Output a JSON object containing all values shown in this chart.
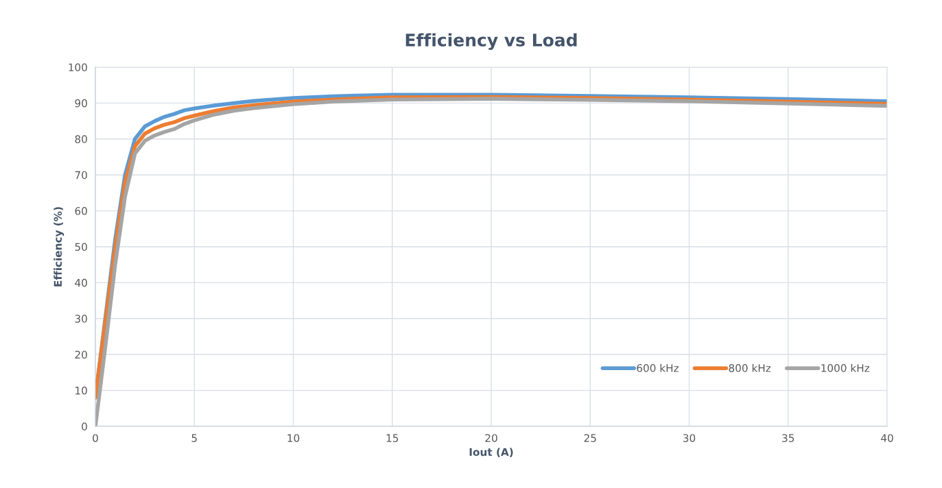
{
  "chart_data": {
    "type": "line",
    "title": "Efficiency vs Load",
    "xlabel": "Iout (A)",
    "ylabel": "Efficiency (%)",
    "x": [
      0,
      0.5,
      1,
      1.5,
      2,
      2.5,
      3,
      3.5,
      4,
      4.5,
      5,
      6,
      7,
      8,
      10,
      12,
      15,
      20,
      25,
      30,
      35,
      40
    ],
    "series": [
      {
        "name": "600 kHz",
        "color": "#5b9bd5",
        "values": [
          8,
          30,
          52,
          70,
          80,
          83.5,
          85,
          86.2,
          87,
          88,
          88.5,
          89.3,
          90,
          90.6,
          91.4,
          91.9,
          92.3,
          92.3,
          92.0,
          91.6,
          91.1,
          90.5
        ]
      },
      {
        "name": "800 kHz",
        "color": "#ed7d31",
        "values": [
          8,
          29,
          50,
          68,
          78,
          81.5,
          83,
          84,
          84.7,
          85.8,
          86.5,
          87.8,
          88.8,
          89.4,
          90.4,
          91,
          91.6,
          91.7,
          91.4,
          91,
          90.4,
          89.8
        ]
      },
      {
        "name": "1000 kHz",
        "color": "#a5a5a5",
        "values": [
          0,
          22,
          45,
          64,
          76,
          79.5,
          81,
          82,
          82.8,
          84.2,
          85.2,
          86.8,
          87.9,
          88.6,
          89.7,
          90.4,
          91,
          91.2,
          90.9,
          90.5,
          89.9,
          89.2
        ]
      }
    ],
    "xlim": [
      0,
      40
    ],
    "xticks": [
      0,
      5,
      10,
      15,
      20,
      25,
      30,
      35,
      40
    ],
    "ylim": [
      0,
      100
    ],
    "yticks": [
      0,
      10,
      20,
      30,
      40,
      50,
      60,
      70,
      80,
      90,
      100
    ],
    "grid": true,
    "legend": "bottom right",
    "marker": "none",
    "line_style": "solid"
  }
}
